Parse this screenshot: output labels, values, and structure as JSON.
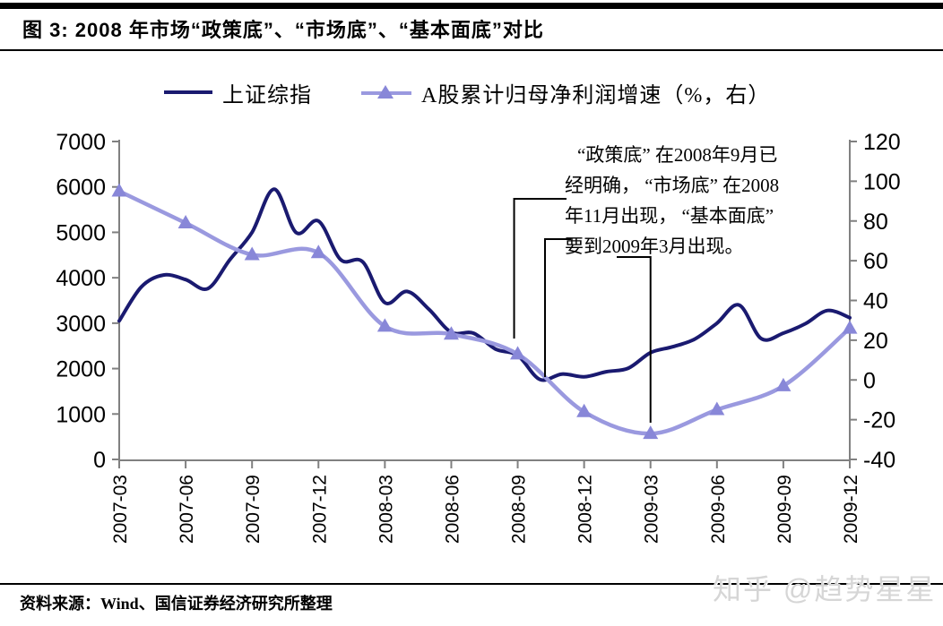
{
  "header": {
    "title": "图 3: 2008 年市场“政策底”、“市场底”、“基本面底”对比"
  },
  "colors": {
    "navy": "#1a1a70",
    "purple_line": "#9a99df",
    "purple_marker": "#8887d8",
    "axis": "#808080",
    "leader_line": "#000000",
    "watermark": "#d6d6d6"
  },
  "chart_data": {
    "type": "line",
    "title": "2008 年市场“政策底”、“市场底”、“基本面底”对比",
    "x_tick_labels": [
      "2007-03",
      "2007-06",
      "2007-09",
      "2007-12",
      "2008-03",
      "2008-06",
      "2008-09",
      "2008-12",
      "2009-03",
      "2009-06",
      "2009-09",
      "2009-12"
    ],
    "left_axis": {
      "min": 0,
      "max": 7000,
      "ticks": [
        7000,
        6000,
        5000,
        4000,
        3000,
        2000,
        1000,
        0
      ]
    },
    "right_axis": {
      "min": -40,
      "max": 120,
      "ticks": [
        120,
        100,
        80,
        60,
        40,
        20,
        0,
        -20,
        -40
      ]
    },
    "legend_position": "top",
    "grid": false,
    "series": [
      {
        "name": "上证综指",
        "axis": "left",
        "color": "#1a1a70",
        "frequency": "monthly",
        "x_start": "2007-03",
        "values": [
          3050,
          3800,
          4060,
          3960,
          3760,
          4400,
          5000,
          5950,
          4990,
          5250,
          4400,
          4350,
          3450,
          3700,
          3300,
          2800,
          2780,
          2430,
          2290,
          1760,
          1880,
          1820,
          1930,
          2010,
          2350,
          2480,
          2650,
          3000,
          3400,
          2660,
          2780,
          2990,
          3280,
          3120
        ]
      },
      {
        "name": "A股累计归母净利润增速（%，右）",
        "axis": "right",
        "color": "#9a99df",
        "marker": "triangle",
        "marker_color": "#8887d8",
        "frequency": "quarterly",
        "x": [
          "2007-03",
          "2007-06",
          "2007-09",
          "2007-12",
          "2008-03",
          "2008-06",
          "2008-09",
          "2008-12",
          "2009-03",
          "2009-06",
          "2009-09",
          "2009-12"
        ],
        "values": [
          95,
          79,
          63,
          64,
          27,
          23,
          13,
          -16,
          -27,
          -15,
          -3,
          26
        ]
      }
    ],
    "annotations": [
      {
        "target": "2008-09",
        "meaning": "政策底"
      },
      {
        "target": "2008-11",
        "meaning": "市场底"
      },
      {
        "target": "2009-03",
        "meaning": "基本面底"
      }
    ]
  },
  "annotation": {
    "lines": [
      "“政策底” 在2008年9月已",
      "经明确， “市场底” 在2008",
      "年11月出现， “基本面底”",
      "要到2009年3月出现。"
    ]
  },
  "footer": {
    "source": "资料来源：Wind、国信证券经济研究所整理",
    "watermark": "知乎 @趋势星星"
  }
}
